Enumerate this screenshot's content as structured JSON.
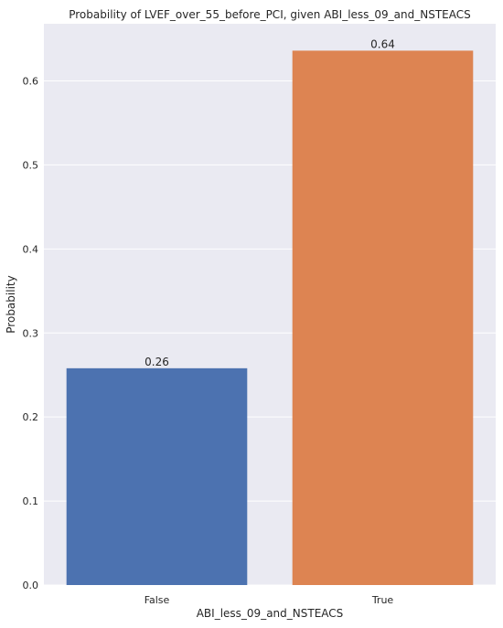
{
  "chart_data": {
    "type": "bar",
    "title": "Probability of LVEF_over_55_before_PCI, given ABI_less_09_and_NSTEACS",
    "xlabel": "ABI_less_09_and_NSTEACS",
    "ylabel": "Probability",
    "categories": [
      "False",
      "True"
    ],
    "values": [
      0.258,
      0.636
    ],
    "data_labels": [
      "0.26",
      "0.64"
    ],
    "bar_colors": [
      "#4c72b0",
      "#dd8452"
    ],
    "ylim": [
      0,
      0.668
    ],
    "yticks": [
      0.0,
      0.1,
      0.2,
      0.3,
      0.4,
      0.5,
      0.6
    ],
    "ytick_labels": [
      "0.0",
      "0.1",
      "0.2",
      "0.3",
      "0.4",
      "0.5",
      "0.6"
    ],
    "grid": true,
    "background": "#eaeaf2"
  }
}
